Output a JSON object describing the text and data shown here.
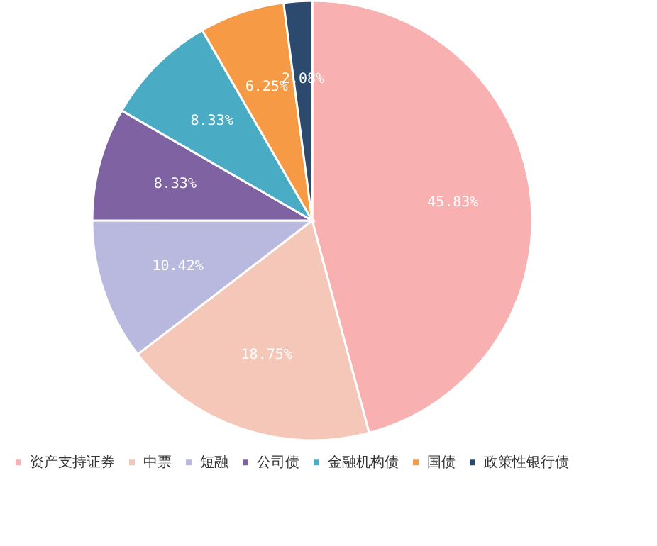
{
  "chart_data": {
    "type": "pie",
    "categories": [
      "资产支持证券",
      "中票",
      "短融",
      "公司债",
      "金融机构债",
      "国债",
      "政策性银行债"
    ],
    "values": [
      45.83,
      18.75,
      10.42,
      8.33,
      8.33,
      6.25,
      2.08
    ],
    "colors": [
      "#f8b1b0",
      "#f4c7b8",
      "#b9b8de",
      "#7f62a2",
      "#4aabc5",
      "#f79a45",
      "#2c4a6e"
    ],
    "value_labels": [
      "45.83%",
      "18.75%",
      "10.42%",
      "8.33%",
      "8.33%",
      "6.25%",
      "2.08%"
    ],
    "legend": "bottom"
  }
}
